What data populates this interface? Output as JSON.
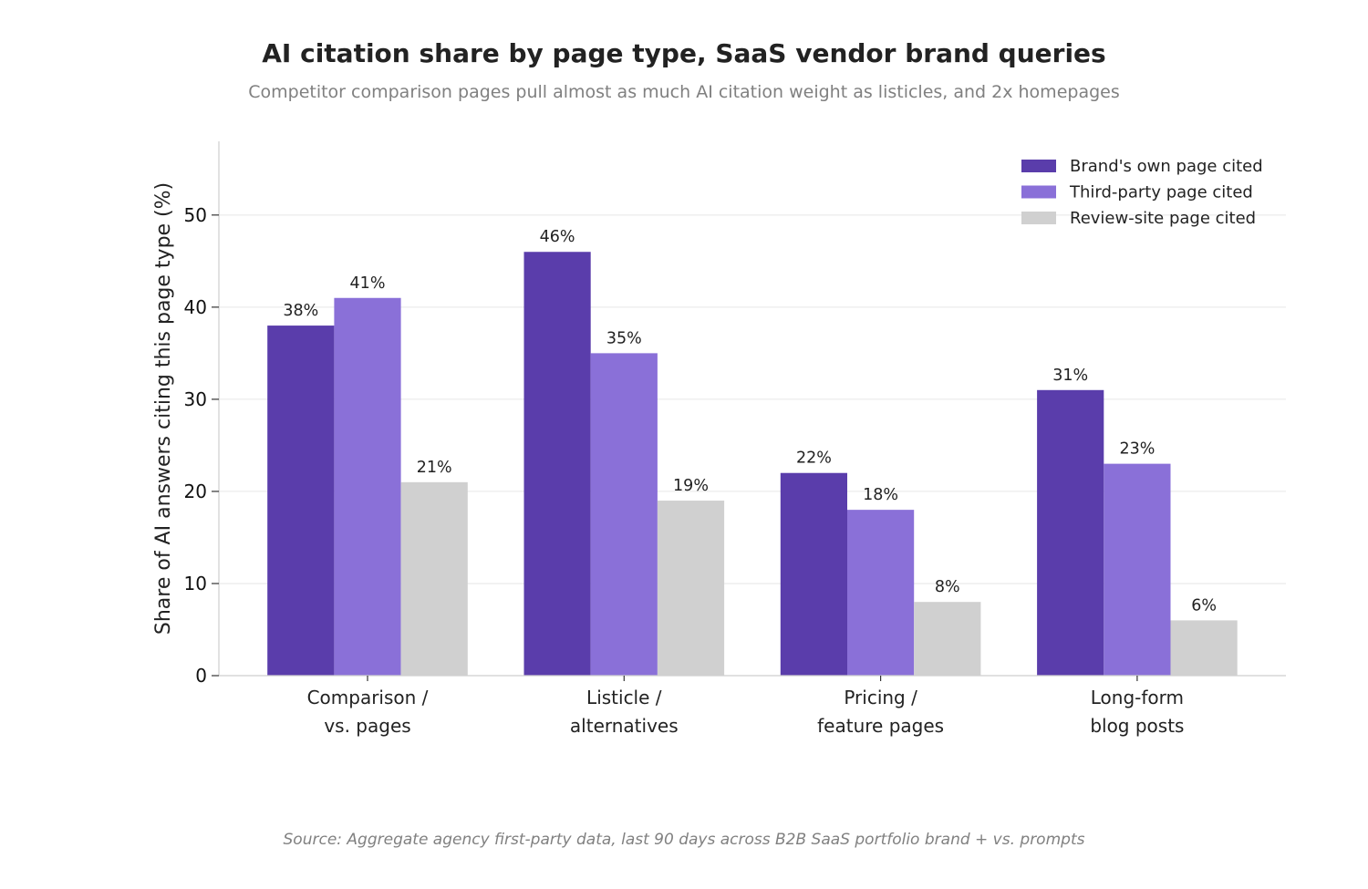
{
  "chart_data": {
    "type": "bar",
    "title": "AI citation share by page type, SaaS vendor brand queries",
    "subtitle": "Competitor comparison pages pull almost as much AI citation weight as listicles, and 2x homepages",
    "ylabel": "Share of AI answers citing this page type (%)",
    "xlabel": "",
    "ylim": [
      0,
      58
    ],
    "yticks": [
      0,
      10,
      20,
      30,
      40,
      50
    ],
    "grid": "y",
    "legend_position": "top-right",
    "categories": [
      [
        "Comparison /",
        "vs. pages"
      ],
      [
        "Listicle /",
        "alternatives"
      ],
      [
        "Pricing /",
        "feature pages"
      ],
      [
        "Long-form",
        "blog posts"
      ]
    ],
    "series": [
      {
        "name": "Brand's own page cited",
        "color": "#5a3dab",
        "values": [
          38,
          46,
          22,
          31
        ]
      },
      {
        "name": "Third-party page cited",
        "color": "#8a70d8",
        "values": [
          41,
          35,
          18,
          23
        ]
      },
      {
        "name": "Review-site page cited",
        "color": "#d0d0d0",
        "values": [
          21,
          19,
          8,
          6
        ]
      }
    ],
    "value_suffix": "%",
    "source": "Source: Aggregate agency first-party data, last 90 days across B2B SaaS portfolio brand + vs. prompts"
  }
}
